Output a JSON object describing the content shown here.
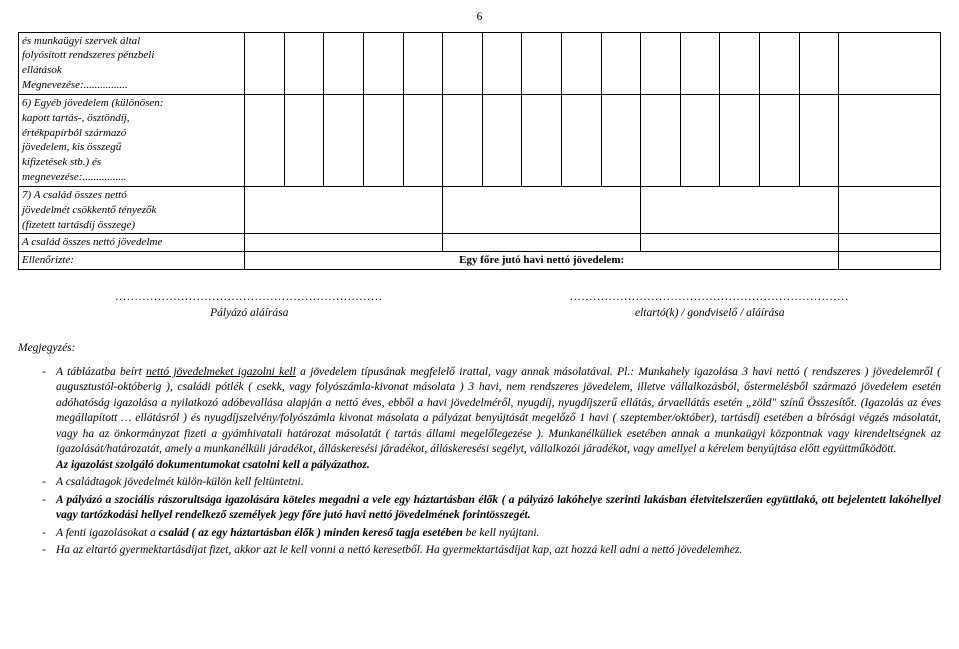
{
  "page_number": "6",
  "table": {
    "rows": [
      {
        "label_lines": [
          "és munkaügyi szervek által",
          "folyósított rendszeres pénzbeli",
          "ellátások",
          "Megnevezése:................"
        ],
        "cells5": true,
        "right_merge": false
      },
      {
        "label_lines": [
          "6) Egyéb jövedelem (különösen:",
          "kapott tartás-, ösztöndíj,",
          "értékpapírból származó",
          "jövedelem, kis összegű",
          "kifizetések stb.) és",
          "megnevezése:................"
        ],
        "cells5": true,
        "right_merge": false
      },
      {
        "label_lines": [
          "7) A család összes nettó",
          "jövedelmét csökkentő tényezők",
          "(fizetett tartásdíj összege)"
        ],
        "cells5": false,
        "right_merge": true
      },
      {
        "label_lines": [
          "A család összes nettó jövedelme"
        ],
        "cells5": false,
        "right_merge": true
      }
    ],
    "ellenorizte_label": "Ellenőrizte:",
    "egy_fore_label": "Egy főre jutó havi nettó jövedelem:"
  },
  "signatures": {
    "left_dots": ".....................................................................",
    "left_label": "Pályázó aláírása",
    "right_dots": "........................................................................",
    "right_label": "eltartó(k) / gondviselő / aláírása"
  },
  "notes_title": "Megjegyzés:",
  "notes": {
    "li1_a": "A táblázatba beírt ",
    "li1_b": "nettó jövedelmeket igazolni kell",
    "li1_c": " a jövedelem típusának megfelelő irattal, vagy annak másolatával. Pl.: Munkahely igazolása 3 havi nettó ( rendszeres ) jövedelemről ( augusztustól-októberig ), családi pótlék ( csekk, vagy folyószámla-kivonat másolata ) 3 havi, nem rendszeres jövedelem, illetve vállalkozásból, őstermelésből származó jövedelem esetén adóhatóság igazolása a nyilatkozó adóbevallása alapján a nettó éves, ebből a havi jövedelméről, nyugdíj, nyugdíjszerű ellátás, árvaellátás esetén „zöld\" színű Összesítőt. (Igazolás az éves megállapított … ellátásról ) és nyugdíjszelvény/folyószámla kivonat másolata a pályázat benyújtását megelőző 1 havi ( szeptember/október), tartásdíj esetében a bírósági végzés másolatát, vagy ha az önkormányzat fizeti a gyámhivatali határozat másolatát ( tartás állami megelőlegezése ). Munkanélküliek esetében annak a munkaügyi központnak vagy kirendeltségnek az igazolását/határozatát, amely a munkanélküli járadékot, álláskeresési járadékot, álláskeresési segélyt, vállalkozói járadékot, vagy amellyel a kérelem benyújtása előtt együttműködött.",
    "li1_d": "Az igazolást szolgáló dokumentumokat csatolni kell a pályázathoz.",
    "li2": "A családtagok jövedelmét külön-külön kell feltüntetni.",
    "li3_a": "A pályázó a szociális rászorultsága igazolására köteles megadni a vele egy háztartásban élők ( a pályázó lakóhelye szerinti lakásban életvitelszerűen együttlakó, ott bejelentett lakóhellyel vagy tartózkodási hellyel rendelkező személyek )",
    "li3_b": "egy főre jutó havi nettó jövedelmének forintösszegét.",
    "li4_a": "A fenti igazolásokat a ",
    "li4_b": "család ( az egy háztartásban élők ) minden kereső tagja esetében",
    "li4_c": " be kell nyújtani.",
    "li5": "Ha az eltartó gyermektartásdíjat fizet, akkor azt le kell vonni a nettó keresetből. Ha gyermektartásdíjat kap, azt hozzá kell adni a nettó jövedelemhez."
  }
}
